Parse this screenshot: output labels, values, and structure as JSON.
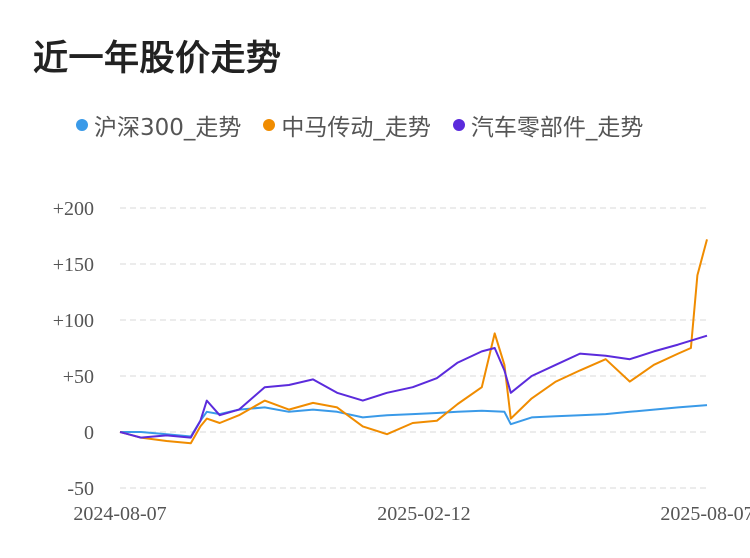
{
  "title": "近一年股价走势",
  "chart_data": {
    "type": "line",
    "title": "近一年股价走势",
    "xlabel": "",
    "ylabel": "",
    "x_ticks": [
      "2024-08-07",
      "2025-02-12",
      "2025-08-07"
    ],
    "y_ticks": [
      "+200",
      "+150",
      "+100",
      "+50",
      "0",
      "-50"
    ],
    "ylim": [
      -50,
      200
    ],
    "grid": true,
    "legend_position": "top",
    "series": [
      {
        "name": "沪深300_走势",
        "color": "#3a9ae8",
        "x": [
          "2024-08-07",
          "2024-08-20",
          "2024-09-05",
          "2024-09-20",
          "2024-09-26",
          "2024-09-30",
          "2024-10-08",
          "2024-10-20",
          "2024-11-05",
          "2024-11-20",
          "2024-12-05",
          "2024-12-20",
          "2025-01-05",
          "2025-01-20",
          "2025-02-05",
          "2025-02-20",
          "2025-03-05",
          "2025-03-20",
          "2025-04-03",
          "2025-04-07",
          "2025-04-20",
          "2025-05-05",
          "2025-05-20",
          "2025-06-05",
          "2025-06-20",
          "2025-07-05",
          "2025-07-20",
          "2025-08-07"
        ],
        "values": [
          0,
          0,
          -2,
          -4,
          10,
          18,
          16,
          20,
          22,
          18,
          20,
          18,
          13,
          15,
          16,
          17,
          18,
          19,
          18,
          7,
          13,
          14,
          15,
          16,
          18,
          20,
          22,
          24
        ]
      },
      {
        "name": "中马传动_走势",
        "color": "#f08c00",
        "x": [
          "2024-08-07",
          "2024-08-20",
          "2024-09-05",
          "2024-09-20",
          "2024-09-26",
          "2024-09-30",
          "2024-10-08",
          "2024-10-20",
          "2024-11-05",
          "2024-11-20",
          "2024-12-05",
          "2024-12-20",
          "2025-01-05",
          "2025-01-20",
          "2025-02-05",
          "2025-02-20",
          "2025-03-05",
          "2025-03-20",
          "2025-03-28",
          "2025-04-03",
          "2025-04-07",
          "2025-04-20",
          "2025-05-05",
          "2025-05-20",
          "2025-06-05",
          "2025-06-20",
          "2025-07-05",
          "2025-07-20",
          "2025-07-28",
          "2025-08-01",
          "2025-08-07"
        ],
        "values": [
          0,
          -5,
          -8,
          -10,
          5,
          12,
          8,
          15,
          28,
          20,
          26,
          22,
          5,
          -2,
          8,
          10,
          25,
          40,
          88,
          60,
          12,
          30,
          45,
          55,
          65,
          45,
          60,
          70,
          75,
          140,
          172
        ]
      },
      {
        "name": "汽车零部件_走势",
        "color": "#5b2bdc",
        "x": [
          "2024-08-07",
          "2024-08-20",
          "2024-09-05",
          "2024-09-20",
          "2024-09-26",
          "2024-09-30",
          "2024-10-08",
          "2024-10-20",
          "2024-11-05",
          "2024-11-20",
          "2024-12-05",
          "2024-12-20",
          "2025-01-05",
          "2025-01-20",
          "2025-02-05",
          "2025-02-20",
          "2025-03-05",
          "2025-03-20",
          "2025-03-28",
          "2025-04-03",
          "2025-04-07",
          "2025-04-20",
          "2025-05-05",
          "2025-05-20",
          "2025-06-05",
          "2025-06-20",
          "2025-07-05",
          "2025-07-20",
          "2025-08-07"
        ],
        "values": [
          0,
          -5,
          -3,
          -5,
          10,
          28,
          15,
          20,
          40,
          42,
          47,
          35,
          28,
          35,
          40,
          48,
          62,
          72,
          75,
          55,
          35,
          50,
          60,
          70,
          68,
          65,
          72,
          78,
          86
        ]
      }
    ]
  }
}
